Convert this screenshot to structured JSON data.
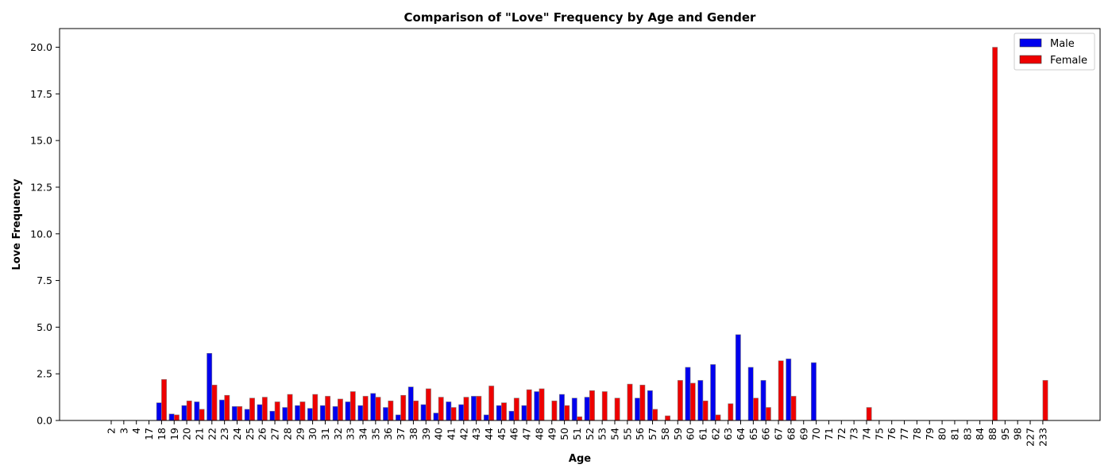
{
  "chart_data": {
    "type": "bar",
    "title": "Comparison of \"Love\" Frequency by Age and Gender",
    "xlabel": "Age",
    "ylabel": "Love Frequency",
    "ylim": [
      0,
      21
    ],
    "yticks": [
      "0.0",
      "2.5",
      "5.0",
      "7.5",
      "10.0",
      "12.5",
      "15.0",
      "17.5",
      "20.0"
    ],
    "ytick_values": [
      0,
      2.5,
      5,
      7.5,
      10,
      12.5,
      15,
      17.5,
      20
    ],
    "legend_position": "top-right",
    "grid": false,
    "categories": [
      "2",
      "3",
      "4",
      "17",
      "18",
      "19",
      "20",
      "21",
      "22",
      "23",
      "24",
      "25",
      "26",
      "27",
      "28",
      "29",
      "30",
      "31",
      "32",
      "33",
      "34",
      "35",
      "36",
      "37",
      "38",
      "39",
      "40",
      "41",
      "42",
      "43",
      "44",
      "45",
      "46",
      "47",
      "48",
      "49",
      "50",
      "51",
      "52",
      "53",
      "54",
      "55",
      "56",
      "57",
      "58",
      "59",
      "60",
      "61",
      "62",
      "63",
      "64",
      "65",
      "66",
      "67",
      "68",
      "69",
      "70",
      "71",
      "72",
      "73",
      "74",
      "75",
      "76",
      "77",
      "78",
      "79",
      "80",
      "81",
      "83",
      "84",
      "88",
      "95",
      "98",
      "227",
      "233"
    ],
    "series": [
      {
        "name": "Male",
        "color": "#0000ee",
        "values": [
          0,
          0,
          0,
          0,
          0.95,
          0.35,
          0.8,
          1.0,
          3.6,
          1.1,
          0.75,
          0.6,
          0.85,
          0.5,
          0.7,
          0.8,
          0.65,
          0.8,
          0.75,
          1.0,
          0.8,
          1.45,
          0.7,
          0.3,
          1.8,
          0.85,
          0.4,
          1.0,
          0.85,
          1.3,
          0.3,
          0.8,
          0.5,
          0.8,
          1.55,
          0,
          1.4,
          1.2,
          1.25,
          0,
          0,
          0,
          1.2,
          1.6,
          0,
          0,
          2.85,
          2.15,
          3.0,
          0,
          4.6,
          2.85,
          2.15,
          0,
          3.3,
          0,
          3.1,
          0,
          0,
          0,
          0,
          0,
          0,
          0,
          0,
          0,
          0,
          0,
          0,
          0,
          0,
          0,
          0,
          0,
          0
        ]
      },
      {
        "name": "Female",
        "color": "#ee0000",
        "values": [
          0,
          0,
          0,
          0,
          2.2,
          0.3,
          1.05,
          0.6,
          1.9,
          1.35,
          0.75,
          1.2,
          1.25,
          1.0,
          1.4,
          1.0,
          1.4,
          1.3,
          1.15,
          1.55,
          1.3,
          1.25,
          1.05,
          1.35,
          1.05,
          1.7,
          1.25,
          0.7,
          1.25,
          1.3,
          1.85,
          0.95,
          1.2,
          1.65,
          1.7,
          1.05,
          0.8,
          0.2,
          1.6,
          1.55,
          1.2,
          1.95,
          1.9,
          0.6,
          0.25,
          2.15,
          2.0,
          1.05,
          0.3,
          0.9,
          0,
          1.2,
          0.7,
          3.2,
          1.3,
          0,
          0,
          0,
          0,
          0,
          0.7,
          0,
          0,
          0,
          0,
          0,
          0,
          0,
          0,
          0,
          20.0,
          0,
          0,
          0,
          2.15
        ]
      }
    ]
  }
}
